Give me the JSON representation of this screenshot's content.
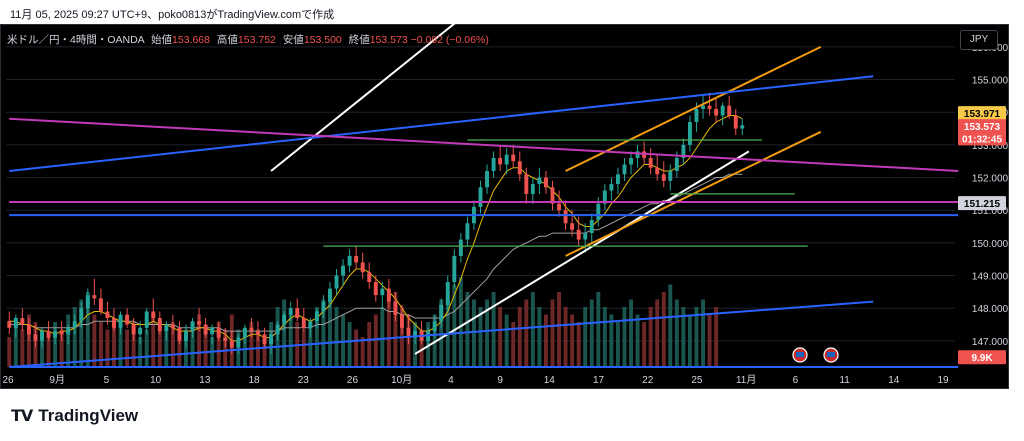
{
  "caption": "11月 05, 2025 09:27 UTC+9、poko0813がTradingView.comで作成",
  "header": {
    "symbol": "米ドル／円・4時間・OANDA",
    "open_label": "始値",
    "open": "153.668",
    "high_label": "高値",
    "high": "153.752",
    "low_label": "安値",
    "low": "153.500",
    "close_label": "終値",
    "close": "153.573",
    "change": "−0.092 (−0.06%)"
  },
  "currency_button": "JPY",
  "brand": "TradingView",
  "chart_data": {
    "type": "candlestick",
    "y_ticks": [
      "156.000",
      "155.000",
      "154.000",
      "153.000",
      "152.000",
      "151.000",
      "150.000",
      "149.000",
      "148.000",
      "147.000"
    ],
    "ylim": [
      146.2,
      156.7
    ],
    "x_ticks": [
      "26",
      "9月",
      "5",
      "10",
      "13",
      "18",
      "23",
      "26",
      "10月",
      "4",
      "9",
      "14",
      "17",
      "22",
      "25",
      "11月",
      "6",
      "11",
      "14",
      "19"
    ],
    "price_labels": [
      {
        "text": "153.971",
        "price": 153.971,
        "bg": "#f7c948",
        "color": "#000000"
      },
      {
        "text": "153.573",
        "price": 153.573,
        "bg": "#ef5350",
        "color": "#ffffff"
      },
      {
        "text": "01:32:45",
        "price": 153.2,
        "bg": "#ef5350",
        "color": "#ffffff"
      },
      {
        "text": "151.215",
        "price": 151.215,
        "bg": "#d1d4dc",
        "color": "#000000"
      },
      {
        "text": "9.9K",
        "price": 146.5,
        "bg": "#ef5350",
        "color": "#ffffff"
      }
    ],
    "colors": {
      "up": "#26a69a",
      "down": "#ef5350",
      "white_line": "#ffffff",
      "blue_line": "#2962ff",
      "orange_line": "#f39c12",
      "magenta_line": "#c23ab8",
      "green_line": "#4caf50",
      "ma_yellow": "#e6b800",
      "ma_gray": "#9e9e9e"
    },
    "candles": [
      [
        147.6,
        147.9,
        147.2,
        147.4
      ],
      [
        147.4,
        147.8,
        147.1,
        147.7
      ],
      [
        147.7,
        148.0,
        147.3,
        147.5
      ],
      [
        147.5,
        147.7,
        147.0,
        147.2
      ],
      [
        147.2,
        147.5,
        146.8,
        147.0
      ],
      [
        147.0,
        147.4,
        146.8,
        147.3
      ],
      [
        147.3,
        147.6,
        147.0,
        147.1
      ],
      [
        147.1,
        147.4,
        146.9,
        147.3
      ],
      [
        147.3,
        147.6,
        147.0,
        147.2
      ],
      [
        147.2,
        147.5,
        146.9,
        147.4
      ],
      [
        147.4,
        147.8,
        147.2,
        147.6
      ],
      [
        147.6,
        148.2,
        147.4,
        148.0
      ],
      [
        148.0,
        148.6,
        147.8,
        148.4
      ],
      [
        148.4,
        148.9,
        148.1,
        148.3
      ],
      [
        148.3,
        148.6,
        147.8,
        147.9
      ],
      [
        147.9,
        148.2,
        147.5,
        147.7
      ],
      [
        147.7,
        148.0,
        147.3,
        147.4
      ],
      [
        147.4,
        147.9,
        147.2,
        147.8
      ],
      [
        147.8,
        148.0,
        147.4,
        147.5
      ],
      [
        147.5,
        147.7,
        147.0,
        147.2
      ],
      [
        147.2,
        147.6,
        146.9,
        147.4
      ],
      [
        147.4,
        148.0,
        147.2,
        147.9
      ],
      [
        147.9,
        148.3,
        147.6,
        147.7
      ],
      [
        147.7,
        147.9,
        147.2,
        147.3
      ],
      [
        147.3,
        147.6,
        147.0,
        147.5
      ],
      [
        147.5,
        147.8,
        147.2,
        147.4
      ],
      [
        147.4,
        147.6,
        146.9,
        147.0
      ],
      [
        147.0,
        147.5,
        146.8,
        147.3
      ],
      [
        147.3,
        147.7,
        147.1,
        147.6
      ],
      [
        147.6,
        148.0,
        147.3,
        147.5
      ],
      [
        147.5,
        147.7,
        147.1,
        147.2
      ],
      [
        147.2,
        147.5,
        146.9,
        147.4
      ],
      [
        147.4,
        147.6,
        147.0,
        147.1
      ],
      [
        147.1,
        147.4,
        146.8,
        147.0
      ],
      [
        147.0,
        147.3,
        146.6,
        146.8
      ],
      [
        146.8,
        147.2,
        146.6,
        147.1
      ],
      [
        147.1,
        147.5,
        146.9,
        147.4
      ],
      [
        147.4,
        147.7,
        147.1,
        147.3
      ],
      [
        147.3,
        147.6,
        147.0,
        147.2
      ],
      [
        147.2,
        147.4,
        146.8,
        146.9
      ],
      [
        146.9,
        147.3,
        146.6,
        147.2
      ],
      [
        147.2,
        147.6,
        147.0,
        147.5
      ],
      [
        147.5,
        147.9,
        147.3,
        147.8
      ],
      [
        147.8,
        148.2,
        147.6,
        148.0
      ],
      [
        148.0,
        148.3,
        147.6,
        147.7
      ],
      [
        147.7,
        148.0,
        147.3,
        147.4
      ],
      [
        147.4,
        147.7,
        147.1,
        147.6
      ],
      [
        147.6,
        148.0,
        147.4,
        147.9
      ],
      [
        147.9,
        148.4,
        147.7,
        148.2
      ],
      [
        148.2,
        148.8,
        148.0,
        148.6
      ],
      [
        148.6,
        149.2,
        148.4,
        149.0
      ],
      [
        149.0,
        149.5,
        148.7,
        149.3
      ],
      [
        149.3,
        149.8,
        149.1,
        149.6
      ],
      [
        149.6,
        149.9,
        149.2,
        149.4
      ],
      [
        149.4,
        149.7,
        148.9,
        149.1
      ],
      [
        149.1,
        149.4,
        148.6,
        148.8
      ],
      [
        148.8,
        149.0,
        148.2,
        148.4
      ],
      [
        148.4,
        148.8,
        148.0,
        148.6
      ],
      [
        148.6,
        148.9,
        148.0,
        148.2
      ],
      [
        148.2,
        148.5,
        147.6,
        147.8
      ],
      [
        147.8,
        148.1,
        147.2,
        147.4
      ],
      [
        147.4,
        147.8,
        146.9,
        147.1
      ],
      [
        147.1,
        147.5,
        146.9,
        147.3
      ],
      [
        147.3,
        147.6,
        146.9,
        147.0
      ],
      [
        147.0,
        147.4,
        146.8,
        147.3
      ],
      [
        147.3,
        147.8,
        147.1,
        147.6
      ],
      [
        147.6,
        148.3,
        147.4,
        148.1
      ],
      [
        148.1,
        149.0,
        147.9,
        148.8
      ],
      [
        148.8,
        149.8,
        148.6,
        149.6
      ],
      [
        149.6,
        150.3,
        149.4,
        150.1
      ],
      [
        150.1,
        150.8,
        149.9,
        150.6
      ],
      [
        150.6,
        151.3,
        150.4,
        151.1
      ],
      [
        151.1,
        151.9,
        150.9,
        151.7
      ],
      [
        151.7,
        152.4,
        151.5,
        152.2
      ],
      [
        152.2,
        152.8,
        152.0,
        152.6
      ],
      [
        152.6,
        153.0,
        152.2,
        152.4
      ],
      [
        152.4,
        152.9,
        152.1,
        152.7
      ],
      [
        152.7,
        153.0,
        152.3,
        152.5
      ],
      [
        152.5,
        152.8,
        151.9,
        152.1
      ],
      [
        152.1,
        152.3,
        151.2,
        151.5
      ],
      [
        151.5,
        152.0,
        151.2,
        151.8
      ],
      [
        151.8,
        152.3,
        151.5,
        152.0
      ],
      [
        152.0,
        152.2,
        151.5,
        151.7
      ],
      [
        151.7,
        151.9,
        151.0,
        151.2
      ],
      [
        151.2,
        151.6,
        150.8,
        151.0
      ],
      [
        151.0,
        151.3,
        150.4,
        150.6
      ],
      [
        150.6,
        151.0,
        150.2,
        150.4
      ],
      [
        150.4,
        150.8,
        149.9,
        150.1
      ],
      [
        150.1,
        150.6,
        149.7,
        150.3
      ],
      [
        150.3,
        150.9,
        150.0,
        150.7
      ],
      [
        150.7,
        151.4,
        150.5,
        151.2
      ],
      [
        151.2,
        151.8,
        151.0,
        151.6
      ],
      [
        151.6,
        152.0,
        151.3,
        151.8
      ],
      [
        151.8,
        152.3,
        151.5,
        152.1
      ],
      [
        152.1,
        152.6,
        151.9,
        152.4
      ],
      [
        152.4,
        152.8,
        152.1,
        152.6
      ],
      [
        152.6,
        153.0,
        152.3,
        152.8
      ],
      [
        152.8,
        153.1,
        152.4,
        152.6
      ],
      [
        152.6,
        152.9,
        152.1,
        152.3
      ],
      [
        152.3,
        152.7,
        151.9,
        152.1
      ],
      [
        152.1,
        152.5,
        151.7,
        151.9
      ],
      [
        151.9,
        152.4,
        151.6,
        152.2
      ],
      [
        152.2,
        152.8,
        152.0,
        152.6
      ],
      [
        152.6,
        153.2,
        152.4,
        153.0
      ],
      [
        153.0,
        153.9,
        152.8,
        153.7
      ],
      [
        153.7,
        154.3,
        153.4,
        154.1
      ],
      [
        154.1,
        154.5,
        153.8,
        154.2
      ],
      [
        154.2,
        154.6,
        153.9,
        154.1
      ],
      [
        154.1,
        154.4,
        153.7,
        153.9
      ],
      [
        153.9,
        154.3,
        153.6,
        154.2
      ],
      [
        154.2,
        154.5,
        153.8,
        153.9
      ],
      [
        153.9,
        154.1,
        153.3,
        153.5
      ],
      [
        153.5,
        153.8,
        153.3,
        153.6
      ]
    ],
    "volumes": [
      4,
      6,
      5,
      7,
      6,
      5,
      4,
      6,
      5,
      7,
      8,
      9,
      10,
      7,
      6,
      5,
      6,
      7,
      5,
      6,
      4,
      5,
      7,
      6,
      5,
      6,
      4,
      5,
      6,
      7,
      5,
      4,
      6,
      5,
      7,
      5,
      4,
      6,
      5,
      4,
      6,
      8,
      9,
      7,
      6,
      5,
      6,
      8,
      9,
      10,
      8,
      7,
      6,
      5,
      4,
      6,
      7,
      8,
      9,
      10,
      8,
      7,
      6,
      5,
      6,
      7,
      9,
      10,
      11,
      12,
      10,
      9,
      8,
      9,
      10,
      8,
      7,
      6,
      8,
      9,
      10,
      8,
      7,
      9,
      10,
      8,
      7,
      6,
      8,
      9,
      10,
      8,
      7,
      6,
      8,
      9,
      7,
      6,
      8,
      9,
      10,
      11,
      9,
      8,
      7,
      8,
      9,
      7,
      8
    ],
    "ma_yellow": [
      147.6,
      147.6,
      147.5,
      147.5,
      147.4,
      147.3,
      147.3,
      147.2,
      147.3,
      147.3,
      147.4,
      147.6,
      147.8,
      147.9,
      147.9,
      147.8,
      147.7,
      147.6,
      147.6,
      147.5,
      147.5,
      147.5,
      147.6,
      147.5,
      147.5,
      147.4,
      147.3,
      147.3,
      147.3,
      147.4,
      147.4,
      147.3,
      147.3,
      147.2,
      147.0,
      147.0,
      147.1,
      147.2,
      147.2,
      147.1,
      147.1,
      147.3,
      147.5,
      147.7,
      147.8,
      147.7,
      147.6,
      147.7,
      147.9,
      148.1,
      148.4,
      148.7,
      149.0,
      149.2,
      149.2,
      149.1,
      148.9,
      148.7,
      148.5,
      148.3,
      148.0,
      147.7,
      147.5,
      147.3,
      147.3,
      147.4,
      147.6,
      147.9,
      148.4,
      148.9,
      149.5,
      150.0,
      150.6,
      151.1,
      151.6,
      151.9,
      152.2,
      152.3,
      152.3,
      152.1,
      152.0,
      151.9,
      151.8,
      151.6,
      151.4,
      151.1,
      150.9,
      150.6,
      150.5,
      150.5,
      150.7,
      150.9,
      151.2,
      151.4,
      151.7,
      152.0,
      152.2,
      152.4,
      152.4,
      152.3,
      152.2,
      152.2,
      152.3,
      152.4,
      152.6,
      152.9,
      153.2,
      153.5,
      153.7,
      153.8,
      153.9,
      153.9,
      153.8
    ],
    "ma_gray": [
      147.5,
      147.5,
      147.5,
      147.5,
      147.4,
      147.4,
      147.4,
      147.4,
      147.4,
      147.4,
      147.4,
      147.5,
      147.5,
      147.6,
      147.6,
      147.6,
      147.6,
      147.6,
      147.6,
      147.6,
      147.5,
      147.5,
      147.5,
      147.5,
      147.5,
      147.5,
      147.4,
      147.4,
      147.4,
      147.4,
      147.4,
      147.4,
      147.4,
      147.3,
      147.3,
      147.3,
      147.3,
      147.3,
      147.3,
      147.3,
      147.3,
      147.3,
      147.4,
      147.4,
      147.4,
      147.4,
      147.4,
      147.5,
      147.5,
      147.6,
      147.7,
      147.8,
      147.9,
      148.0,
      148.0,
      148.0,
      148.0,
      148.0,
      147.9,
      147.9,
      147.8,
      147.8,
      147.7,
      147.7,
      147.7,
      147.7,
      147.7,
      147.8,
      147.9,
      148.1,
      148.3,
      148.5,
      148.7,
      148.9,
      149.2,
      149.4,
      149.6,
      149.8,
      149.9,
      150.0,
      150.1,
      150.2,
      150.2,
      150.3,
      150.3,
      150.3,
      150.3,
      150.3,
      150.3,
      150.4,
      150.4,
      150.5,
      150.6,
      150.7,
      150.8,
      150.9,
      151.0,
      151.1,
      151.2,
      151.2,
      151.3,
      151.3,
      151.4,
      151.5,
      151.6,
      151.7,
      151.8,
      151.9,
      152.0,
      152.0,
      152.1,
      152.1,
      152.1
    ],
    "lines": [
      {
        "kind": "white",
        "from": [
          40,
          152.2
        ],
        "to": [
          76,
          158.0
        ]
      },
      {
        "kind": "white",
        "from": [
          62,
          146.6
        ],
        "to": [
          113,
          152.8
        ]
      },
      {
        "kind": "orange",
        "from": [
          85,
          152.2
        ],
        "to": [
          124,
          156.0
        ]
      },
      {
        "kind": "orange",
        "from": [
          85,
          149.6
        ],
        "to": [
          124,
          153.4
        ]
      },
      {
        "kind": "blue",
        "from": [
          0,
          152.2
        ],
        "to": [
          132,
          155.1
        ]
      },
      {
        "kind": "blue",
        "from": [
          0,
          146.2
        ],
        "to": [
          132,
          148.2
        ]
      },
      {
        "kind": "magenta",
        "from": [
          0,
          153.8
        ],
        "to": [
          145,
          152.2
        ]
      },
      {
        "kind": "magenta_h",
        "from": [
          0,
          151.25
        ],
        "to": [
          145,
          151.25
        ]
      },
      {
        "kind": "blue_h",
        "from": [
          0,
          150.85
        ],
        "to": [
          145,
          150.85
        ]
      },
      {
        "kind": "blue_h",
        "from": [
          0,
          146.2
        ],
        "to": [
          145,
          146.2
        ]
      },
      {
        "kind": "green",
        "from": [
          70,
          153.15
        ],
        "to": [
          115,
          153.15
        ]
      },
      {
        "kind": "green",
        "from": [
          101,
          151.5
        ],
        "to": [
          120,
          151.5
        ]
      },
      {
        "kind": "green",
        "from": [
          48,
          149.9
        ],
        "to": [
          122,
          149.9
        ]
      }
    ],
    "event_icons": 2
  }
}
